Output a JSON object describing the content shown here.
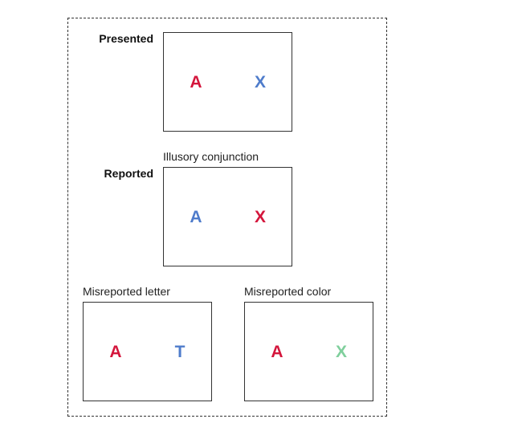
{
  "colors": {
    "red": "#d4163c",
    "blue": "#4f7ccb",
    "green": "#7fcf9c"
  },
  "labels": {
    "presented": "Presented",
    "reported": "Reported",
    "illusory_conjunction": "Illusory conjunction",
    "misreported_letter": "Misreported letter",
    "misreported_color": "Misreported color"
  },
  "panels": {
    "presented": [
      {
        "letter": "A",
        "color": "red"
      },
      {
        "letter": "X",
        "color": "blue"
      }
    ],
    "illusory_conjunction": [
      {
        "letter": "A",
        "color": "blue"
      },
      {
        "letter": "X",
        "color": "red"
      }
    ],
    "misreported_letter": [
      {
        "letter": "A",
        "color": "red"
      },
      {
        "letter": "T",
        "color": "blue"
      }
    ],
    "misreported_color": [
      {
        "letter": "A",
        "color": "red"
      },
      {
        "letter": "X",
        "color": "green"
      }
    ]
  }
}
